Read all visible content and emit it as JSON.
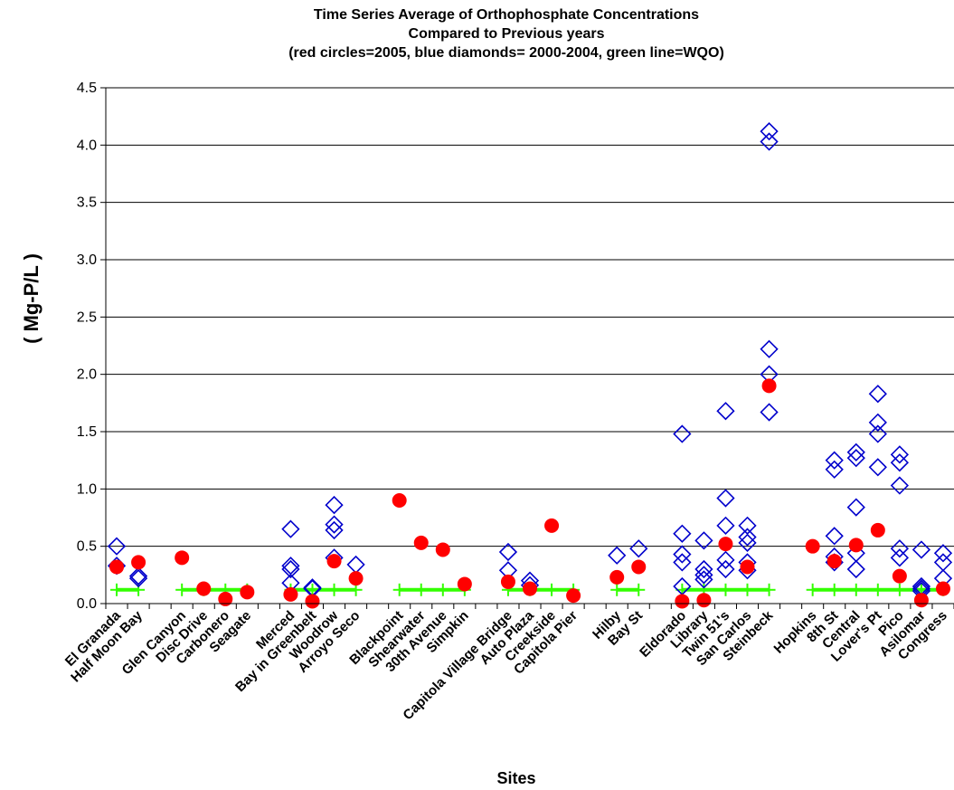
{
  "chart_data": {
    "type": "scatter",
    "title_lines": [
      "Time Series Average of Orthophosphate Concentrations",
      "Compared to Previous years",
      "(red circles=2005, blue diamonds= 2000-2004, green line=WQO)"
    ],
    "xlabel": "Sites",
    "ylabel": "( Mg-P/L )",
    "ylim": [
      0,
      4.5
    ],
    "yticks": [
      "0.0",
      "0.5",
      "1.0",
      "1.5",
      "2.0",
      "2.5",
      "3.0",
      "3.5",
      "4.0",
      "4.5"
    ],
    "grid": true,
    "sites": [
      "El Granada",
      "Half Moon Bay",
      "Glen Canyon",
      "Disc Drive",
      "Carbonero",
      "Seagate",
      "Merced",
      "Bay in Greenbelt",
      "Woodrow",
      "Arroyo Seco",
      "Blackpoint",
      "Shearwater",
      "30th Avenue",
      "Simpkin",
      "Capitola Village Bridge",
      "Auto Plaza",
      "Creekside",
      "Capitola Pier",
      "Hilby",
      "Bay St",
      "Eldorado",
      "Library",
      "Twin 51's",
      "San Carlos",
      "Steinbeck",
      "Hopkins",
      "8th St",
      "Central",
      "Lover's Pt",
      "Pico",
      "Asilomar",
      "Congress"
    ],
    "site_slots": [
      1,
      2,
      4,
      5,
      6,
      7,
      9,
      10,
      11,
      12,
      14,
      15,
      16,
      17,
      19,
      20,
      21,
      22,
      24,
      25,
      27,
      28,
      29,
      30,
      31,
      33,
      34,
      35,
      36,
      37,
      38,
      39
    ],
    "total_slots": 39,
    "series": [
      {
        "name": "2005",
        "marker": "circle",
        "color": "#ff0000",
        "values": [
          0.32,
          0.36,
          0.4,
          0.13,
          0.04,
          0.1,
          0.08,
          0.02,
          0.37,
          0.22,
          0.9,
          0.53,
          0.47,
          0.17,
          0.19,
          0.13,
          0.68,
          0.07,
          0.23,
          0.32,
          0.02,
          0.03,
          0.52,
          0.32,
          1.9,
          0.5,
          0.37,
          0.51,
          0.64,
          0.24,
          0.03,
          0.13
        ]
      },
      {
        "name": "2000-2004",
        "marker": "diamond",
        "color": "#0000cc",
        "points": [
          [
            1,
            0.5
          ],
          [
            1,
            0.33
          ],
          [
            2,
            0.24
          ],
          [
            2,
            0.22
          ],
          [
            9,
            0.65
          ],
          [
            9,
            0.33
          ],
          [
            9,
            0.3
          ],
          [
            9,
            0.18
          ],
          [
            10,
            0.13
          ],
          [
            10,
            0.14
          ],
          [
            11,
            0.86
          ],
          [
            11,
            0.69
          ],
          [
            11,
            0.64
          ],
          [
            11,
            0.4
          ],
          [
            12,
            0.34
          ],
          [
            19,
            0.45
          ],
          [
            19,
            0.29
          ],
          [
            20,
            0.2
          ],
          [
            20,
            0.16
          ],
          [
            24,
            0.42
          ],
          [
            25,
            0.48
          ],
          [
            27,
            1.48
          ],
          [
            27,
            0.61
          ],
          [
            27,
            0.43
          ],
          [
            27,
            0.36
          ],
          [
            27,
            0.15
          ],
          [
            28,
            0.55
          ],
          [
            28,
            0.3
          ],
          [
            28,
            0.25
          ],
          [
            28,
            0.21
          ],
          [
            29,
            1.68
          ],
          [
            29,
            0.92
          ],
          [
            29,
            0.68
          ],
          [
            29,
            0.38
          ],
          [
            29,
            0.3
          ],
          [
            30,
            0.68
          ],
          [
            30,
            0.58
          ],
          [
            30,
            0.53
          ],
          [
            30,
            0.36
          ],
          [
            30,
            0.29
          ],
          [
            31,
            4.12
          ],
          [
            31,
            4.03
          ],
          [
            31,
            2.22
          ],
          [
            31,
            2.0
          ],
          [
            31,
            1.67
          ],
          [
            34,
            1.25
          ],
          [
            34,
            1.17
          ],
          [
            34,
            0.59
          ],
          [
            34,
            0.41
          ],
          [
            34,
            0.36
          ],
          [
            35,
            1.32
          ],
          [
            35,
            1.27
          ],
          [
            35,
            0.84
          ],
          [
            35,
            0.44
          ],
          [
            35,
            0.3
          ],
          [
            36,
            1.83
          ],
          [
            36,
            1.58
          ],
          [
            36,
            1.48
          ],
          [
            36,
            1.19
          ],
          [
            37,
            1.3
          ],
          [
            37,
            1.23
          ],
          [
            37,
            1.03
          ],
          [
            37,
            0.48
          ],
          [
            37,
            0.4
          ],
          [
            38,
            0.47
          ],
          [
            38,
            0.15
          ],
          [
            38,
            0.13
          ],
          [
            38,
            0.11
          ],
          [
            39,
            0.44
          ],
          [
            39,
            0.36
          ],
          [
            39,
            0.22
          ]
        ]
      },
      {
        "name": "WQO",
        "marker": "plus-line",
        "color": "#33ff00",
        "value": 0.12,
        "groups": [
          [
            1,
            2
          ],
          [
            4,
            7
          ],
          [
            9,
            12
          ],
          [
            14,
            17
          ],
          [
            19,
            22
          ],
          [
            24,
            25
          ],
          [
            27,
            31
          ],
          [
            33,
            39
          ]
        ]
      }
    ]
  }
}
